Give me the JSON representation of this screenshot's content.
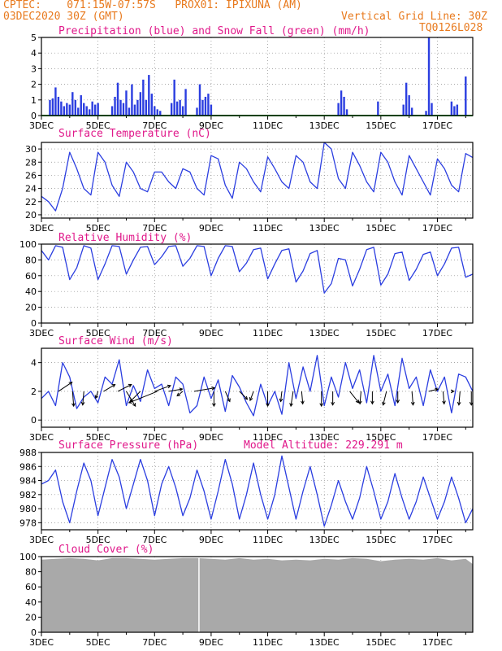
{
  "header": {
    "line1": "CPTEC:    071:15W-07:57S   PROX01: IPIXUNA (AM)",
    "line2": "03DEC2020 30Z (GMT)",
    "grid_note": "Vertical Grid Line: 30Z",
    "code": "TQ0126L028"
  },
  "colors": {
    "header": "#e87a1e",
    "title": "#e0188a",
    "line": "#2b3ee0",
    "snow": "#1aa31a",
    "cloud": "#a9a9a9",
    "grid": "#888888"
  },
  "x_axis": {
    "tick_labels": [
      "3DEC",
      "5DEC",
      "7DEC",
      "9DEC",
      "11DEC",
      "13DEC",
      "15DEC",
      "17DEC"
    ],
    "day_min": 3.0,
    "day_max": 18.25
  },
  "chart_data": [
    {
      "id": "precip",
      "type": "bar",
      "title": "Precipitation (blue) and Snow Fall (green) (mm/h)",
      "ylim": [
        0,
        5
      ],
      "yticks": [
        0,
        1,
        2,
        3,
        4,
        5
      ],
      "series": [
        {
          "name": "Precipitation",
          "color": "#2b3ee0",
          "x": [
            3.3,
            3.4,
            3.5,
            3.6,
            3.7,
            3.8,
            3.9,
            4.0,
            4.1,
            4.2,
            4.3,
            4.4,
            4.5,
            4.6,
            4.7,
            4.8,
            4.9,
            5.0,
            5.5,
            5.6,
            5.7,
            5.8,
            5.9,
            6.0,
            6.1,
            6.2,
            6.3,
            6.4,
            6.5,
            6.6,
            6.7,
            6.8,
            6.9,
            7.0,
            7.1,
            7.2,
            7.6,
            7.7,
            7.8,
            7.9,
            8.0,
            8.1,
            8.5,
            8.6,
            8.7,
            8.8,
            8.9,
            9.0,
            13.5,
            13.6,
            13.7,
            13.8,
            14.9,
            15.8,
            15.9,
            16.0,
            16.1,
            16.6,
            16.7,
            16.8,
            17.5,
            17.6,
            17.7,
            18.0
          ],
          "values": [
            1.0,
            1.1,
            1.8,
            1.2,
            0.9,
            0.6,
            0.8,
            0.7,
            1.5,
            1.0,
            0.5,
            1.3,
            0.8,
            0.6,
            0.4,
            0.9,
            0.7,
            0.8,
            0.6,
            1.2,
            2.1,
            1.0,
            0.8,
            1.6,
            0.5,
            2.0,
            0.7,
            1.0,
            1.5,
            2.3,
            1.0,
            2.6,
            1.4,
            0.6,
            0.4,
            0.3,
            0.8,
            2.3,
            0.9,
            1.0,
            0.6,
            1.7,
            0.5,
            2.0,
            1.0,
            1.2,
            1.4,
            0.7,
            0.8,
            1.6,
            1.2,
            0.4,
            0.9,
            0.7,
            2.1,
            1.3,
            0.5,
            0.3,
            5.0,
            0.8,
            0.9,
            0.6,
            0.7,
            2.5
          ]
        },
        {
          "name": "Snow Fall",
          "color": "#1aa31a",
          "constant": 0
        }
      ]
    },
    {
      "id": "temp",
      "type": "line",
      "title": "Surface Temperature (nC)",
      "ylim": [
        19.5,
        31
      ],
      "yticks": [
        20,
        22,
        24,
        26,
        28,
        30
      ],
      "series": [
        {
          "name": "Surface Temperature",
          "x": [
            3.0,
            3.25,
            3.5,
            3.75,
            4.0,
            4.25,
            4.5,
            4.75,
            5.0,
            5.25,
            5.5,
            5.75,
            6.0,
            6.25,
            6.5,
            6.75,
            7.0,
            7.25,
            7.5,
            7.75,
            8.0,
            8.25,
            8.5,
            8.75,
            9.0,
            9.25,
            9.5,
            9.75,
            10.0,
            10.25,
            10.5,
            10.75,
            11.0,
            11.25,
            11.5,
            11.75,
            12.0,
            12.25,
            12.5,
            12.75,
            13.0,
            13.25,
            13.5,
            13.75,
            14.0,
            14.25,
            14.5,
            14.75,
            15.0,
            15.25,
            15.5,
            15.75,
            16.0,
            16.25,
            16.5,
            16.75,
            17.0,
            17.25,
            17.5,
            17.75,
            18.0,
            18.25
          ],
          "values": [
            22.8,
            22.0,
            20.6,
            24.0,
            29.5,
            27.0,
            24.0,
            23.0,
            29.5,
            28.0,
            24.5,
            22.8,
            28.0,
            26.5,
            24.0,
            23.5,
            26.5,
            26.5,
            25.0,
            24.0,
            27.0,
            26.5,
            24.0,
            23.0,
            29.0,
            28.5,
            24.5,
            22.5,
            28.0,
            27.0,
            25.0,
            23.5,
            28.8,
            27.0,
            25.0,
            24.0,
            29.0,
            28.0,
            25.0,
            24.0,
            31.0,
            30.0,
            25.5,
            24.0,
            29.5,
            27.5,
            25.0,
            23.5,
            29.5,
            28.0,
            25.0,
            23.0,
            29.0,
            27.0,
            25.0,
            23.0,
            28.5,
            27.0,
            24.5,
            23.5,
            29.3,
            28.7
          ]
        }
      ]
    },
    {
      "id": "rh",
      "type": "line",
      "title": "Relative Humidity (%)",
      "ylim": [
        0,
        100
      ],
      "yticks": [
        0,
        20,
        40,
        60,
        80,
        100
      ],
      "series": [
        {
          "name": "Relative Humidity",
          "x": [
            3.0,
            3.25,
            3.5,
            3.75,
            4.0,
            4.25,
            4.5,
            4.75,
            5.0,
            5.25,
            5.5,
            5.75,
            6.0,
            6.25,
            6.5,
            6.75,
            7.0,
            7.25,
            7.5,
            7.75,
            8.0,
            8.25,
            8.5,
            8.75,
            9.0,
            9.25,
            9.5,
            9.75,
            10.0,
            10.25,
            10.5,
            10.75,
            11.0,
            11.25,
            11.5,
            11.75,
            12.0,
            12.25,
            12.5,
            12.75,
            13.0,
            13.25,
            13.5,
            13.75,
            14.0,
            14.25,
            14.5,
            14.75,
            15.0,
            15.25,
            15.5,
            15.75,
            16.0,
            16.25,
            16.5,
            16.75,
            17.0,
            17.25,
            17.5,
            17.75,
            18.0,
            18.25
          ],
          "values": [
            92,
            80,
            98,
            96,
            55,
            70,
            98,
            95,
            55,
            75,
            98,
            97,
            62,
            80,
            96,
            97,
            74,
            84,
            97,
            98,
            72,
            82,
            98,
            97,
            60,
            82,
            98,
            97,
            65,
            76,
            93,
            95,
            56,
            75,
            92,
            94,
            52,
            66,
            88,
            92,
            38,
            50,
            82,
            80,
            47,
            68,
            93,
            96,
            48,
            62,
            88,
            90,
            54,
            68,
            87,
            90,
            60,
            75,
            95,
            96,
            58,
            62
          ]
        }
      ]
    },
    {
      "id": "wind",
      "type": "line",
      "title": "Surface Wind (m/s)",
      "ylim": [
        -0.5,
        5
      ],
      "yticks": [
        0,
        2,
        4
      ],
      "series": [
        {
          "name": "Surface Wind",
          "x": [
            3.0,
            3.25,
            3.5,
            3.75,
            4.0,
            4.25,
            4.5,
            4.75,
            5.0,
            5.25,
            5.5,
            5.75,
            6.0,
            6.25,
            6.5,
            6.75,
            7.0,
            7.25,
            7.5,
            7.75,
            8.0,
            8.25,
            8.5,
            8.75,
            9.0,
            9.25,
            9.5,
            9.75,
            10.0,
            10.25,
            10.5,
            10.75,
            11.0,
            11.25,
            11.5,
            11.75,
            12.0,
            12.25,
            12.5,
            12.75,
            13.0,
            13.25,
            13.5,
            13.75,
            14.0,
            14.25,
            14.5,
            14.75,
            15.0,
            15.25,
            15.5,
            15.75,
            16.0,
            16.25,
            16.5,
            16.75,
            17.0,
            17.25,
            17.5,
            17.75,
            18.0,
            18.25
          ],
          "values": [
            1.5,
            2.0,
            1.0,
            4.0,
            3.0,
            0.8,
            1.6,
            2.0,
            1.2,
            3.0,
            2.5,
            4.2,
            1.0,
            2.4,
            1.3,
            3.5,
            2.2,
            2.5,
            1.0,
            3.0,
            2.5,
            0.5,
            1.0,
            3.0,
            1.5,
            2.8,
            0.6,
            3.1,
            2.3,
            1.2,
            0.3,
            2.5,
            1.0,
            2.0,
            0.4,
            4.0,
            1.5,
            3.7,
            2.0,
            4.5,
            1.0,
            3.0,
            1.6,
            4.0,
            2.2,
            3.5,
            1.2,
            4.5,
            2.0,
            3.2,
            1.0,
            4.3,
            2.2,
            3.0,
            1.0,
            3.5,
            2.0,
            3.0,
            0.5,
            3.2,
            3.0,
            2.0
          ]
        }
      ],
      "arrows": [
        {
          "x": 3.6,
          "u": 1.2,
          "v": 0.8
        },
        {
          "x": 4.1,
          "u": 0.1,
          "v": -1.3
        },
        {
          "x": 4.5,
          "u": -0.1,
          "v": -1.2
        },
        {
          "x": 5.0,
          "u": -0.2,
          "v": -0.6
        },
        {
          "x": 5.2,
          "u": 1.0,
          "v": 0.6
        },
        {
          "x": 5.7,
          "u": 1.2,
          "v": 0.6
        },
        {
          "x": 6.0,
          "u": 0.8,
          "v": -1.3
        },
        {
          "x": 6.5,
          "u": -0.9,
          "v": -0.9
        },
        {
          "x": 7.1,
          "u": -2.5,
          "v": -1.0
        },
        {
          "x": 7.0,
          "u": 1.4,
          "v": 0.5
        },
        {
          "x": 7.5,
          "u": 1.2,
          "v": 0.2
        },
        {
          "x": 8.0,
          "u": -0.5,
          "v": -0.4
        },
        {
          "x": 8.4,
          "u": 1.8,
          "v": 0.3
        },
        {
          "x": 9.1,
          "u": 0.0,
          "v": -1.3
        },
        {
          "x": 9.5,
          "u": 0.4,
          "v": -0.9
        },
        {
          "x": 10.0,
          "u": 0.7,
          "v": -0.7
        },
        {
          "x": 10.5,
          "u": -0.3,
          "v": -0.8
        },
        {
          "x": 11.0,
          "u": 0.0,
          "v": -1.3
        },
        {
          "x": 11.5,
          "u": -0.1,
          "v": -0.9
        },
        {
          "x": 11.9,
          "u": -0.2,
          "v": -1.3
        },
        {
          "x": 12.2,
          "u": 0.1,
          "v": -1.1
        },
        {
          "x": 12.9,
          "u": 0.0,
          "v": -1.3
        },
        {
          "x": 13.3,
          "u": 0.0,
          "v": -1.2
        },
        {
          "x": 13.9,
          "u": 0.8,
          "v": -1.0
        },
        {
          "x": 14.3,
          "u": -0.1,
          "v": -1.1
        },
        {
          "x": 14.7,
          "u": 0.0,
          "v": -1.1
        },
        {
          "x": 15.2,
          "u": -0.3,
          "v": -1.2
        },
        {
          "x": 15.6,
          "u": 0.0,
          "v": -1.0
        },
        {
          "x": 16.1,
          "u": 0.1,
          "v": -1.2
        },
        {
          "x": 16.7,
          "u": 0.8,
          "v": 0.2
        },
        {
          "x": 17.2,
          "u": 0.1,
          "v": -1.1
        },
        {
          "x": 17.5,
          "u": 0.2,
          "v": 0.0
        },
        {
          "x": 17.8,
          "u": -0.1,
          "v": -1.2
        },
        {
          "x": 18.2,
          "u": 0.0,
          "v": -1.2
        }
      ]
    },
    {
      "id": "pres",
      "type": "line",
      "title": "Surface Pressure (hPa)",
      "subtitle": "Model Altitude: 229.291 m",
      "ylim": [
        977,
        988
      ],
      "yticks": [
        978,
        980,
        982,
        984,
        986,
        988
      ],
      "series": [
        {
          "name": "Surface Pressure",
          "x": [
            3.0,
            3.25,
            3.5,
            3.75,
            4.0,
            4.25,
            4.5,
            4.75,
            5.0,
            5.25,
            5.5,
            5.75,
            6.0,
            6.25,
            6.5,
            6.75,
            7.0,
            7.25,
            7.5,
            7.75,
            8.0,
            8.25,
            8.5,
            8.75,
            9.0,
            9.25,
            9.5,
            9.75,
            10.0,
            10.25,
            10.5,
            10.75,
            11.0,
            11.25,
            11.5,
            11.75,
            12.0,
            12.25,
            12.5,
            12.75,
            13.0,
            13.25,
            13.5,
            13.75,
            14.0,
            14.25,
            14.5,
            14.75,
            15.0,
            15.25,
            15.5,
            15.75,
            16.0,
            16.25,
            16.5,
            16.75,
            17.0,
            17.25,
            17.5,
            17.75,
            18.0,
            18.25
          ],
          "values": [
            983.5,
            984.0,
            985.5,
            981.0,
            978.0,
            982.5,
            986.5,
            984.0,
            979.0,
            983.0,
            987.0,
            984.5,
            980.0,
            983.5,
            987.0,
            984.0,
            979.0,
            983.5,
            986.0,
            983.0,
            979.0,
            981.5,
            985.5,
            982.5,
            978.5,
            982.5,
            987.0,
            983.5,
            978.5,
            982.0,
            986.5,
            982.0,
            978.5,
            982.0,
            987.5,
            983.0,
            978.5,
            982.5,
            986.0,
            982.0,
            977.5,
            980.5,
            984.0,
            981.0,
            978.5,
            981.5,
            986.0,
            982.5,
            978.5,
            981.0,
            985.0,
            981.5,
            978.5,
            981.0,
            984.5,
            981.5,
            978.5,
            981.0,
            984.5,
            981.5,
            978.0,
            980.0
          ]
        }
      ]
    },
    {
      "id": "cloud",
      "type": "area",
      "title": "Cloud Cover (%)",
      "ylim": [
        0,
        100
      ],
      "yticks": [
        0,
        20,
        40,
        60,
        80,
        100
      ],
      "series": [
        {
          "name": "Cloud Cover",
          "color": "#a9a9a9",
          "x": [
            3.0,
            3.5,
            4.0,
            4.5,
            5.0,
            5.5,
            6.0,
            6.5,
            7.0,
            7.5,
            8.0,
            8.5,
            9.0,
            9.5,
            10.0,
            10.5,
            11.0,
            11.5,
            12.0,
            12.5,
            13.0,
            13.5,
            14.0,
            14.5,
            15.0,
            15.5,
            16.0,
            16.5,
            17.0,
            17.5,
            18.0,
            18.25
          ],
          "values": [
            96,
            97,
            98,
            97,
            95,
            98,
            98,
            97,
            96,
            97,
            98,
            98,
            97,
            96,
            98,
            96,
            97,
            95,
            96,
            95,
            97,
            96,
            98,
            97,
            94,
            96,
            97,
            96,
            98,
            95,
            97,
            90
          ],
          "gaps": [
            8.57
          ]
        }
      ]
    }
  ]
}
